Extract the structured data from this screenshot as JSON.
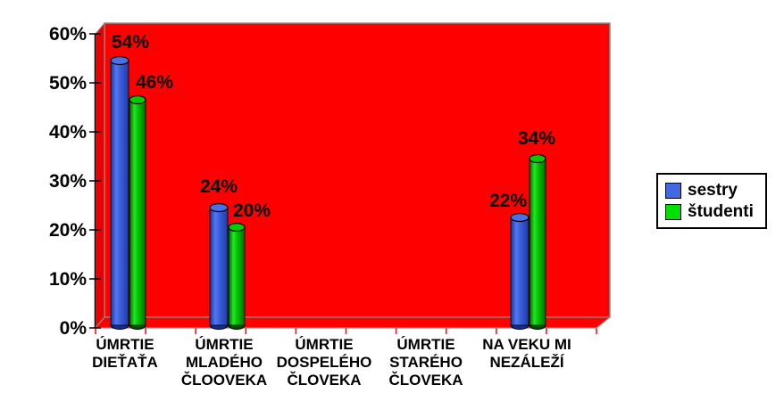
{
  "chart_data": {
    "type": "bar",
    "subtype": "3d-cylinder",
    "title": "",
    "categories": [
      "ÚMRTIE DIEŤAŤA",
      "ÚMRTIE MLADÉHO ČLOOVEKA",
      "ÚMRTIE DOSPELÉHO ČLOVEKA",
      "ÚMRTIE STARÉHO ČLOVEKA",
      "NA VEKU MI NEZÁLEŽÍ"
    ],
    "category_lines": [
      [
        "ÚMRTIE",
        "DIEŤAŤA"
      ],
      [
        "ÚMRTIE",
        "MLADÉHO",
        "ČLOOVEKA"
      ],
      [
        "ÚMRTIE",
        "DOSPELÉHO",
        "ČLOVEKA"
      ],
      [
        "ÚMRTIE",
        "STARÉHO",
        "ČLOVEKA"
      ],
      [
        "NA VEKU MI",
        "NEZÁLEŽÍ"
      ]
    ],
    "series": [
      {
        "name": "sestry",
        "color": "#4169E1",
        "values": [
          54,
          24,
          0,
          0,
          22
        ]
      },
      {
        "name": "študenti",
        "color": "#00E000",
        "values": [
          46,
          20,
          0,
          0,
          34
        ]
      }
    ],
    "value_label_suffix": "%",
    "value_labels": [
      [
        "54%",
        "24%",
        "",
        "",
        "22%"
      ],
      [
        "46%",
        "20%",
        "",
        "",
        "34%"
      ]
    ],
    "ytick_values": [
      0,
      10,
      20,
      30,
      40,
      50,
      60
    ],
    "ytick_labels": [
      "0%",
      "10%",
      "20%",
      "30%",
      "40%",
      "50%",
      "60%"
    ],
    "ylim": [
      0,
      60
    ],
    "grid": false,
    "plot_background": "#FF0000",
    "wall_border_color": "#8C8C8C",
    "x_tick_color": "#FF0000",
    "y_axis_color": "#000000",
    "text_color": "#000000",
    "legend_position": "right"
  },
  "legend": {
    "items": [
      {
        "label": "sestry",
        "color": "#4169E1"
      },
      {
        "label": "študenti",
        "color": "#00E000"
      }
    ]
  }
}
